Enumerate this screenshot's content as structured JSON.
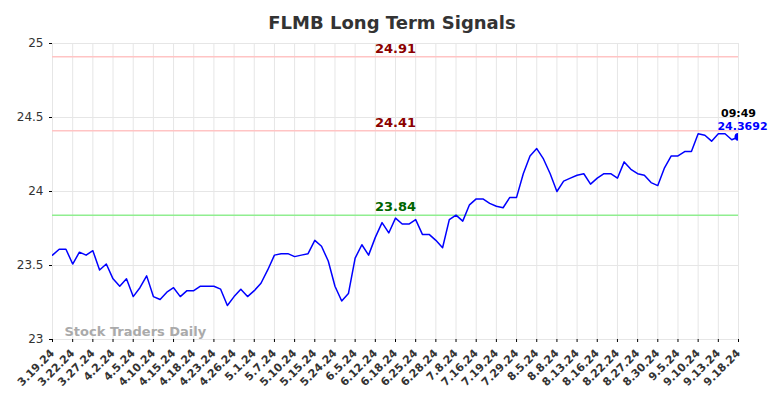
{
  "chart_data": {
    "type": "line",
    "title": "FLMB Long Term Signals",
    "categories": [
      "3.19.24",
      null,
      null,
      "3.22.24",
      null,
      null,
      "3.27.24",
      null,
      null,
      "4.2.24",
      null,
      null,
      "4.5.24",
      null,
      null,
      "4.10.24",
      null,
      null,
      "4.15.24",
      null,
      null,
      "4.18.24",
      null,
      null,
      "4.23.24",
      null,
      null,
      "4.26.24",
      null,
      null,
      "5.1.24",
      null,
      null,
      "5.7.24",
      null,
      null,
      "5.10.24",
      null,
      null,
      "5.15.24",
      null,
      null,
      "5.24.24",
      null,
      null,
      "6.5.24",
      null,
      null,
      "6.12.24",
      null,
      null,
      "6.18.24",
      null,
      null,
      "6.25.24",
      null,
      null,
      "6.28.24",
      null,
      null,
      "7.8.24",
      null,
      null,
      "7.16.24",
      null,
      null,
      "7.19.24",
      null,
      null,
      "7.29.24",
      null,
      null,
      "8.5.24",
      null,
      null,
      "8.8.24",
      null,
      null,
      "8.13.24",
      null,
      null,
      "8.16.24",
      null,
      null,
      "8.22.24",
      null,
      null,
      "8.27.24",
      null,
      null,
      "8.30.24",
      null,
      null,
      "9.5.24",
      null,
      null,
      "9.10.24",
      null,
      null,
      "9.13.24",
      null,
      null,
      "9.18.24"
    ],
    "values": [
      23.57,
      23.61,
      23.61,
      23.51,
      23.59,
      23.57,
      23.6,
      23.47,
      23.51,
      23.41,
      23.36,
      23.41,
      23.29,
      23.35,
      23.43,
      23.29,
      23.27,
      23.32,
      23.35,
      23.29,
      23.33,
      23.33,
      23.36,
      23.36,
      23.36,
      23.34,
      23.23,
      23.29,
      23.34,
      23.29,
      23.33,
      23.38,
      23.47,
      23.57,
      23.58,
      23.58,
      23.56,
      23.57,
      23.58,
      23.67,
      23.63,
      23.53,
      23.36,
      23.26,
      23.31,
      23.55,
      23.64,
      23.57,
      23.69,
      23.79,
      23.72,
      23.82,
      23.78,
      23.78,
      23.81,
      23.71,
      23.71,
      23.67,
      23.62,
      23.81,
      23.84,
      23.8,
      23.91,
      23.95,
      23.95,
      23.92,
      23.9,
      23.89,
      23.96,
      23.96,
      24.12,
      24.24,
      24.29,
      24.22,
      24.12,
      24.0,
      24.07,
      24.09,
      24.11,
      24.12,
      24.05,
      24.09,
      24.12,
      24.12,
      24.09,
      24.2,
      24.15,
      24.12,
      24.11,
      24.06,
      24.04,
      24.16,
      24.24,
      24.24,
      24.27,
      24.27,
      24.39,
      24.38,
      24.34,
      24.39,
      24.39,
      24.35,
      24.3692
    ],
    "color": "#0000ff",
    "ylim": [
      23,
      25
    ],
    "yticks": [
      23,
      23.5,
      24,
      24.5,
      25
    ],
    "grid": true,
    "reference_lines": [
      {
        "value": 24.91,
        "label": "24.91",
        "color": "#ffc4c4",
        "label_color": "#8b0000"
      },
      {
        "value": 24.41,
        "label": "24.41",
        "color": "#ffc4c4",
        "label_color": "#8b0000"
      },
      {
        "value": 23.84,
        "label": "23.84",
        "color": "#90ee90",
        "label_color": "#006400"
      }
    ],
    "last_point_labels": [
      "09:49",
      "24.3692"
    ],
    "watermark": "Stock Traders Daily"
  }
}
